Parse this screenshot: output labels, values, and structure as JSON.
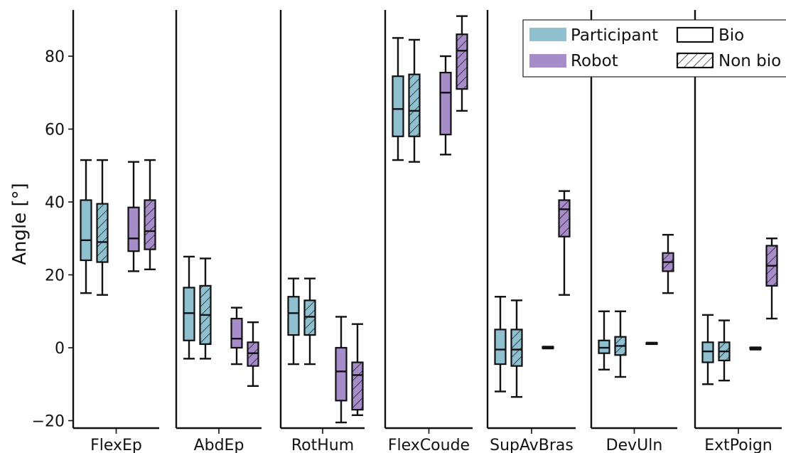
{
  "chart_data": {
    "type": "box",
    "ylabel": "Angle [°]",
    "ylim": [
      -22,
      93
    ],
    "yticks": [
      -20,
      0,
      20,
      40,
      60,
      80
    ],
    "legend": {
      "placement": "top-right",
      "entries": [
        {
          "key": "participant",
          "label": "Participant",
          "kind": "color",
          "color": "#8fc0d0"
        },
        {
          "key": "bio",
          "label": "Bio",
          "kind": "hatch",
          "hatched": false
        },
        {
          "key": "robot",
          "label": "Robot",
          "kind": "color",
          "color": "#a68cc8"
        },
        {
          "key": "nonbio",
          "label": "Non bio",
          "kind": "hatch",
          "hatched": true
        }
      ]
    },
    "series": [
      {
        "name": "Participant",
        "movement": "Bio",
        "color": "#8fc0d0",
        "hatched": false
      },
      {
        "name": "Participant",
        "movement": "Non bio",
        "color": "#8fc0d0",
        "hatched": true
      },
      {
        "name": "Robot",
        "movement": "Bio",
        "color": "#a68cc8",
        "hatched": false
      },
      {
        "name": "Robot",
        "movement": "Non bio",
        "color": "#a68cc8",
        "hatched": true
      }
    ],
    "panels": [
      {
        "label": "FlexEp",
        "boxes": [
          {
            "min": 15,
            "q1": 24,
            "median": 29.5,
            "q3": 40.5,
            "max": 51.5
          },
          {
            "min": 14.5,
            "q1": 23.5,
            "median": 29,
            "q3": 39.5,
            "max": 51.5
          },
          {
            "min": 21,
            "q1": 26.5,
            "median": 30,
            "q3": 38.5,
            "max": 51
          },
          {
            "min": 21.5,
            "q1": 27,
            "median": 32,
            "q3": 40.5,
            "max": 51.5
          }
        ]
      },
      {
        "label": "AbdEp",
        "boxes": [
          {
            "min": -3,
            "q1": 2,
            "median": 9.5,
            "q3": 16.5,
            "max": 25
          },
          {
            "min": -3,
            "q1": 1,
            "median": 9,
            "q3": 17,
            "max": 24.5
          },
          {
            "min": -4.5,
            "q1": 0,
            "median": 2.5,
            "q3": 8,
            "max": 11
          },
          {
            "min": -10.5,
            "q1": -5,
            "median": -1.5,
            "q3": 1.5,
            "max": 7
          }
        ]
      },
      {
        "label": "RotHum",
        "boxes": [
          {
            "min": -4.5,
            "q1": 3.5,
            "median": 9.5,
            "q3": 14,
            "max": 19
          },
          {
            "min": -4.5,
            "q1": 3.5,
            "median": 8.5,
            "q3": 13,
            "max": 19
          },
          {
            "min": -20.5,
            "q1": -14.5,
            "median": -6.5,
            "q3": 0,
            "max": 8.5
          },
          {
            "min": -18.5,
            "q1": -17,
            "median": -7.5,
            "q3": -4,
            "max": 6.5
          }
        ]
      },
      {
        "label": "FlexCoude",
        "boxes": [
          {
            "min": 51.5,
            "q1": 58,
            "median": 65.5,
            "q3": 74.5,
            "max": 85
          },
          {
            "min": 51,
            "q1": 58,
            "median": 65,
            "q3": 75,
            "max": 84.5
          },
          {
            "min": 53,
            "q1": 58.5,
            "median": 70,
            "q3": 75.5,
            "max": 80
          },
          {
            "min": 65,
            "q1": 71,
            "median": 81.5,
            "q3": 86,
            "max": 91
          }
        ]
      },
      {
        "label": "SupAvBras",
        "boxes": [
          {
            "min": -12,
            "q1": -4.5,
            "median": -0.5,
            "q3": 5,
            "max": 14
          },
          {
            "min": -13.5,
            "q1": -5,
            "median": -0.5,
            "q3": 5,
            "max": 13
          },
          {
            "min": -0.2,
            "q1": -0.1,
            "median": 0,
            "q3": 0.2,
            "max": 0.3
          },
          {
            "min": 14.5,
            "q1": 30.5,
            "median": 38,
            "q3": 40.5,
            "max": 43
          }
        ]
      },
      {
        "label": "DevUln",
        "boxes": [
          {
            "min": -6,
            "q1": -1.5,
            "median": 0,
            "q3": 2,
            "max": 10
          },
          {
            "min": -8,
            "q1": -2,
            "median": 0.5,
            "q3": 3,
            "max": 10
          },
          {
            "min": 1,
            "q1": 1.1,
            "median": 1.2,
            "q3": 1.3,
            "max": 1.4
          },
          {
            "min": 15,
            "q1": 21,
            "median": 23.5,
            "q3": 26,
            "max": 31
          }
        ]
      },
      {
        "label": "ExtPoign",
        "boxes": [
          {
            "min": -10,
            "q1": -4,
            "median": -1,
            "q3": 1.5,
            "max": 9
          },
          {
            "min": -9,
            "q1": -3.5,
            "median": -1,
            "q3": 1.5,
            "max": 7.5
          },
          {
            "min": -0.5,
            "q1": -0.3,
            "median": -0.2,
            "q3": 0,
            "max": 0.1
          },
          {
            "min": 8,
            "q1": 17,
            "median": 22.5,
            "q3": 28,
            "max": 30
          }
        ]
      }
    ]
  }
}
